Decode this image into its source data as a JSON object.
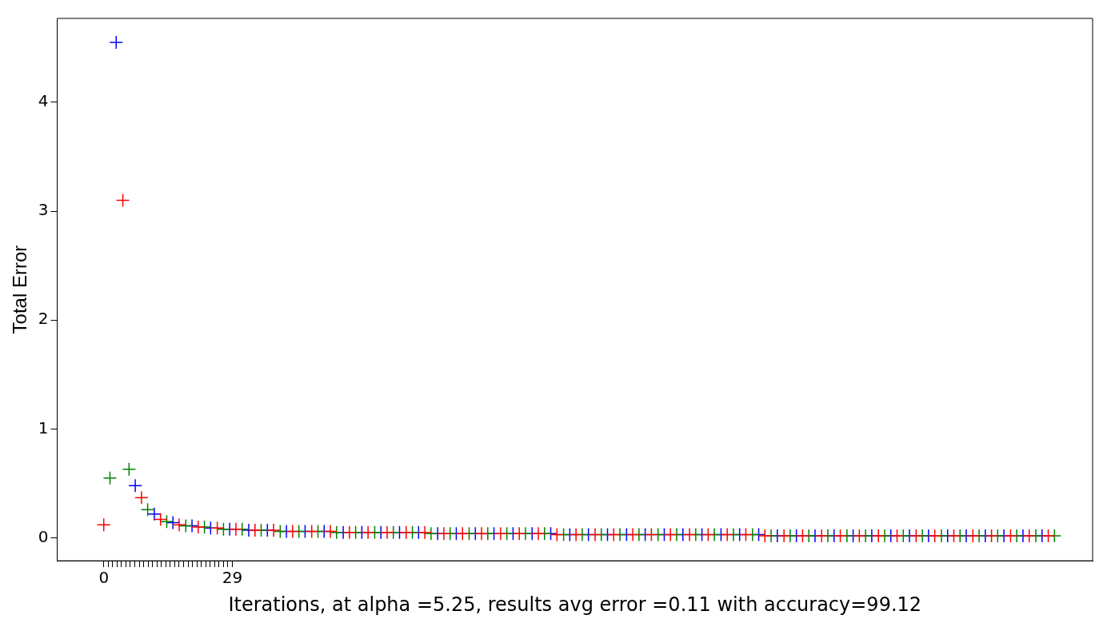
{
  "chart_data": {
    "type": "scatter",
    "xlabel": "Iterations, at alpha =5.25, results avg error =0.11 with accuracy=99.12",
    "ylabel": "Total Error",
    "marker": "cross",
    "grid": false,
    "legend": false,
    "xlim": [
      -10.5,
      223
    ],
    "xticks": [
      0,
      {
        "value": 1,
        "label": null
      },
      {
        "value": 2,
        "label": null
      },
      {
        "value": 3,
        "label": null
      },
      {
        "value": 4,
        "label": null
      },
      {
        "value": 5,
        "label": null
      },
      {
        "value": 6,
        "label": null
      },
      {
        "value": 7,
        "label": null
      },
      {
        "value": 8,
        "label": null
      },
      {
        "value": 9,
        "label": null
      },
      {
        "value": 10,
        "label": null
      },
      {
        "value": 11,
        "label": null
      },
      {
        "value": 12,
        "label": null
      },
      {
        "value": 13,
        "label": null
      },
      {
        "value": 14,
        "label": null
      },
      {
        "value": 15,
        "label": null
      },
      {
        "value": 16,
        "label": null
      },
      {
        "value": 17,
        "label": null
      },
      {
        "value": 18,
        "label": null
      },
      {
        "value": 19,
        "label": null
      },
      {
        "value": 20,
        "label": null
      },
      {
        "value": 21,
        "label": null
      },
      {
        "value": 22,
        "label": null
      },
      {
        "value": 23,
        "label": null
      },
      {
        "value": 24,
        "label": null
      },
      {
        "value": 25,
        "label": null
      },
      {
        "value": 26,
        "label": null
      },
      {
        "value": 27,
        "label": null
      },
      {
        "value": 28,
        "label": null
      },
      29
    ],
    "ylim": [
      -0.21,
      4.77
    ],
    "yticks": [
      0,
      1,
      2,
      3,
      4
    ],
    "series": [
      {
        "color": "#ff0000",
        "x": [
          0,
          4.3,
          8.5,
          12.8,
          17,
          21.3,
          25.6,
          29.8,
          34.1,
          38.3,
          42.6,
          46.9,
          51.1,
          55.4,
          59.6,
          63.9,
          68.2,
          72.4,
          76.7,
          80.9,
          85.2,
          89.5,
          93.7,
          98,
          102.2,
          106.5,
          110.8,
          115,
          119.3,
          123.5,
          127.8,
          132.1,
          136.3,
          140.6,
          144.8,
          149.1,
          153.4,
          157.6,
          161.9,
          166.1,
          170.4,
          174.7,
          178.9,
          183.2,
          187.4,
          191.7,
          196,
          200.2,
          204.5,
          208.7,
          213
        ],
        "values": [
          0.12,
          3.1,
          0.37,
          0.17,
          0.12,
          0.1,
          0.09,
          0.08,
          0.07,
          0.07,
          0.06,
          0.06,
          0.06,
          0.05,
          0.05,
          0.05,
          0.05,
          0.05,
          0.04,
          0.04,
          0.04,
          0.04,
          0.04,
          0.04,
          0.03,
          0.03,
          0.03,
          0.03,
          0.03,
          0.03,
          0.03,
          0.03,
          0.03,
          0.03,
          0.03,
          0.02,
          0.02,
          0.02,
          0.02,
          0.02,
          0.02,
          0.02,
          0.02,
          0.02,
          0.02,
          0.02,
          0.02,
          0.02,
          0.02,
          0.02,
          0.02
        ]
      },
      {
        "color": "#008000",
        "x": [
          1.4,
          5.7,
          9.9,
          14.2,
          18.5,
          22.7,
          27,
          31.2,
          35.5,
          39.8,
          44,
          48.3,
          52.5,
          56.8,
          61.1,
          65.3,
          69.6,
          73.8,
          78.1,
          82.4,
          86.6,
          90.9,
          95.1,
          99.4,
          103.7,
          107.9,
          112.2,
          116.4,
          120.7,
          125,
          129.2,
          133.5,
          137.7,
          142,
          146.3,
          150.5,
          154.8,
          159,
          163.3,
          167.6,
          171.8,
          176.1,
          180.3,
          184.6,
          188.9,
          193.1,
          197.4,
          201.6,
          205.9,
          210.2,
          214.4
        ],
        "values": [
          0.55,
          0.63,
          0.26,
          0.15,
          0.11,
          0.1,
          0.08,
          0.08,
          0.07,
          0.06,
          0.06,
          0.06,
          0.05,
          0.05,
          0.05,
          0.05,
          0.05,
          0.04,
          0.04,
          0.04,
          0.04,
          0.04,
          0.04,
          0.04,
          0.03,
          0.03,
          0.03,
          0.03,
          0.03,
          0.03,
          0.03,
          0.03,
          0.03,
          0.03,
          0.03,
          0.02,
          0.02,
          0.02,
          0.02,
          0.02,
          0.02,
          0.02,
          0.02,
          0.02,
          0.02,
          0.02,
          0.02,
          0.02,
          0.02,
          0.02,
          0.02
        ]
      },
      {
        "color": "#0000ff",
        "x": [
          2.8,
          7.1,
          11.4,
          15.6,
          19.9,
          24.1,
          28.4,
          32.7,
          36.9,
          41.2,
          45.4,
          49.7,
          54,
          58.2,
          62.5,
          66.7,
          71,
          75.3,
          79.5,
          83.8,
          88,
          92.3,
          96.6,
          100.8,
          105.1,
          109.3,
          113.6,
          117.9,
          122.1,
          126.4,
          130.6,
          134.9,
          139.2,
          143.4,
          147.7,
          151.9,
          156.2,
          160.4,
          164.7,
          169,
          173.2,
          177.5,
          181.7,
          186,
          190.3,
          194.5,
          198.8,
          203,
          207.3,
          211.6
        ],
        "values": [
          4.55,
          0.48,
          0.22,
          0.14,
          0.11,
          0.09,
          0.08,
          0.07,
          0.07,
          0.06,
          0.06,
          0.06,
          0.05,
          0.05,
          0.05,
          0.05,
          0.05,
          0.04,
          0.04,
          0.04,
          0.04,
          0.04,
          0.04,
          0.04,
          0.03,
          0.03,
          0.03,
          0.03,
          0.03,
          0.03,
          0.03,
          0.03,
          0.03,
          0.03,
          0.03,
          0.02,
          0.02,
          0.02,
          0.02,
          0.02,
          0.02,
          0.02,
          0.02,
          0.02,
          0.02,
          0.02,
          0.02,
          0.02,
          0.02,
          0.02
        ]
      }
    ]
  }
}
